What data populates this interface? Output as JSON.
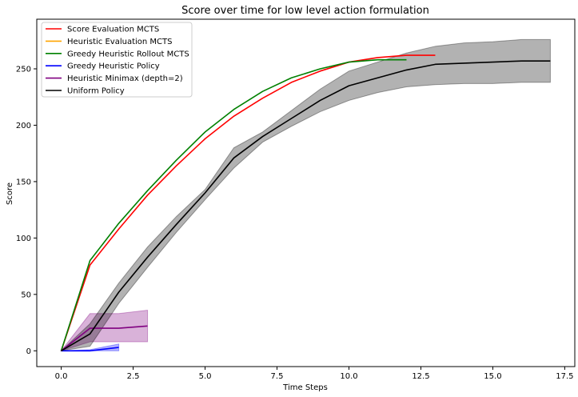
{
  "chart_data": {
    "type": "line",
    "title": "Score over time for low level action formulation",
    "xlabel": "Time Steps",
    "ylabel": "Score",
    "xlim": [
      -0.85,
      17.85
    ],
    "ylim": [
      -14,
      294
    ],
    "xticks": [
      0.0,
      2.5,
      5.0,
      7.5,
      10.0,
      12.5,
      15.0,
      17.5
    ],
    "xtick_labels": [
      "0.0",
      "2.5",
      "5.0",
      "7.5",
      "10.0",
      "12.5",
      "15.0",
      "17.5"
    ],
    "yticks": [
      0,
      50,
      100,
      150,
      200,
      250
    ],
    "ytick_labels": [
      "0",
      "50",
      "100",
      "150",
      "200",
      "250"
    ],
    "grid": false,
    "legend_position": "upper-left",
    "series": [
      {
        "name": "Score Evaluation MCTS",
        "color": "#ff0000",
        "x": [
          0,
          1,
          2,
          3,
          4,
          5,
          6,
          7,
          8,
          9,
          10,
          11,
          12,
          13
        ],
        "y": [
          0,
          76,
          108,
          138,
          164,
          188,
          208,
          224,
          238,
          248,
          256,
          260,
          262,
          262
        ]
      },
      {
        "name": "Heuristic Evaluation MCTS",
        "color": "#ffa500",
        "x": [],
        "y": []
      },
      {
        "name": "Greedy Heuristic Rollout MCTS",
        "color": "#008000",
        "x": [
          0,
          1,
          2,
          3,
          4,
          5,
          6,
          7,
          8,
          9,
          10,
          11,
          12
        ],
        "y": [
          0,
          80,
          113,
          142,
          169,
          194,
          214,
          230,
          242,
          250,
          256,
          258,
          258
        ]
      },
      {
        "name": "Greedy Heuristic Policy",
        "color": "#0000ff",
        "x": [
          0,
          1,
          2
        ],
        "y": [
          0,
          0,
          3
        ],
        "band_lower": [
          0,
          0,
          0
        ],
        "band_upper": [
          0,
          1,
          6
        ]
      },
      {
        "name": "Heuristic Minimax (depth=2)",
        "color": "#800080",
        "x": [
          0,
          1,
          2,
          3
        ],
        "y": [
          0,
          20,
          20,
          22
        ],
        "band_lower": [
          0,
          8,
          8,
          8
        ],
        "band_upper": [
          0,
          33,
          33,
          36
        ]
      },
      {
        "name": "Uniform Policy",
        "color": "#000000",
        "x": [
          0,
          1,
          2,
          3,
          4,
          5,
          6,
          7,
          8,
          9,
          10,
          11,
          12,
          13,
          14,
          15,
          16,
          17
        ],
        "y": [
          0,
          15,
          52,
          83,
          112,
          140,
          171,
          190,
          206,
          222,
          235,
          242,
          249,
          254,
          255,
          256,
          257,
          257
        ],
        "band_lower": [
          0,
          4,
          42,
          74,
          105,
          134,
          162,
          185,
          199,
          212,
          222,
          229,
          234,
          236,
          237,
          237,
          238,
          238
        ],
        "band_upper": [
          0,
          24,
          60,
          92,
          119,
          143,
          180,
          194,
          213,
          232,
          248,
          256,
          264,
          270,
          273,
          274,
          276,
          276
        ]
      }
    ]
  }
}
